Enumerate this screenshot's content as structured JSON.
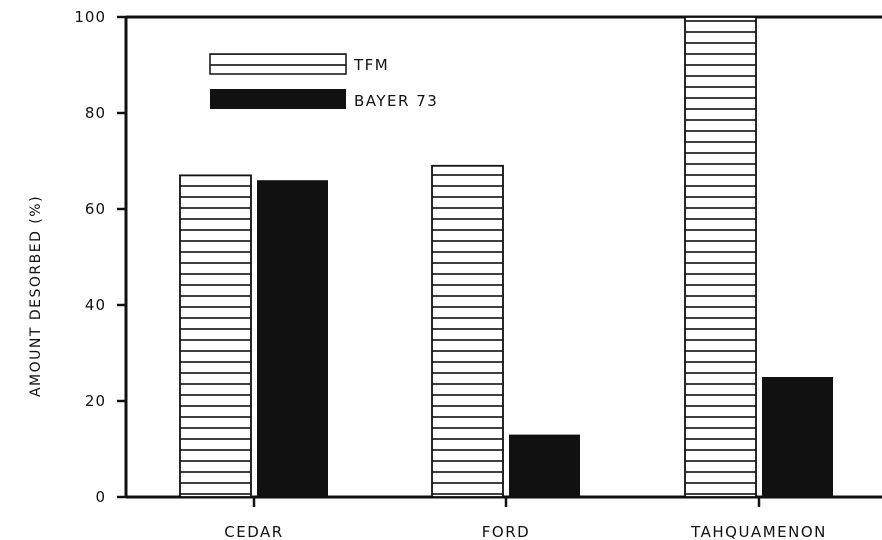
{
  "chart_data": {
    "type": "bar",
    "title": "",
    "xlabel": "",
    "ylabel": "AMOUNT DESORBED (%)",
    "ylim": [
      0,
      100
    ],
    "yticks": [
      0,
      20,
      40,
      60,
      80,
      100
    ],
    "categories": [
      "CEDAR",
      "FORD",
      "TAHQUAMENON"
    ],
    "series": [
      {
        "name": "TFM",
        "values": [
          67,
          69,
          100
        ],
        "pattern": "horizontal-hatch",
        "color": "#ffffff"
      },
      {
        "name": "BAYER 73",
        "values": [
          66,
          13,
          25
        ],
        "pattern": "solid",
        "color": "#111111"
      }
    ],
    "legend": {
      "position": "top-left"
    },
    "grid": false
  }
}
